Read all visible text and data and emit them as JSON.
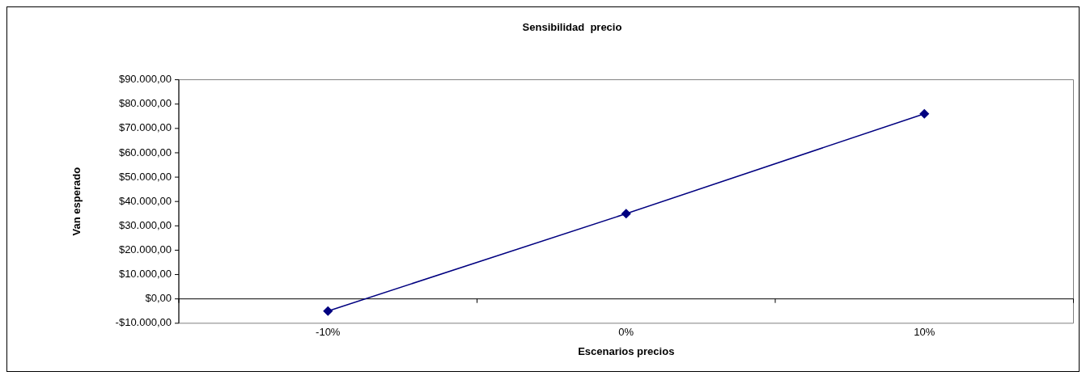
{
  "chart_data": {
    "type": "line",
    "title": "Sensibilidad  precio",
    "xlabel": "Escenarios precios",
    "ylabel": "Van esperado",
    "categories": [
      "-10%",
      "0%",
      "10%"
    ],
    "series": [
      {
        "color": "#000080",
        "values": [
          -5000,
          35000,
          76000
        ]
      }
    ],
    "ylim": [
      -10000,
      90000
    ],
    "yticks": [
      {
        "value": -10000,
        "label": "-$10.000,00"
      },
      {
        "value": 0,
        "label": "$0,00"
      },
      {
        "value": 10000,
        "label": "$10.000,00"
      },
      {
        "value": 20000,
        "label": "$20.000,00"
      },
      {
        "value": 30000,
        "label": "$30.000,00"
      },
      {
        "value": 40000,
        "label": "$40.000,00"
      },
      {
        "value": 50000,
        "label": "$50.000,00"
      },
      {
        "value": 60000,
        "label": "$60.000,00"
      },
      {
        "value": 70000,
        "label": "$70.000,00"
      },
      {
        "value": 80000,
        "label": "$80.000,00"
      },
      {
        "value": 90000,
        "label": "$90.000,00"
      }
    ],
    "ref_lines": [
      {
        "axis": "y",
        "value": 0,
        "color": "#000000"
      }
    ],
    "grid": false,
    "legend": false,
    "marker": "diamond",
    "line_style": "solid"
  }
}
